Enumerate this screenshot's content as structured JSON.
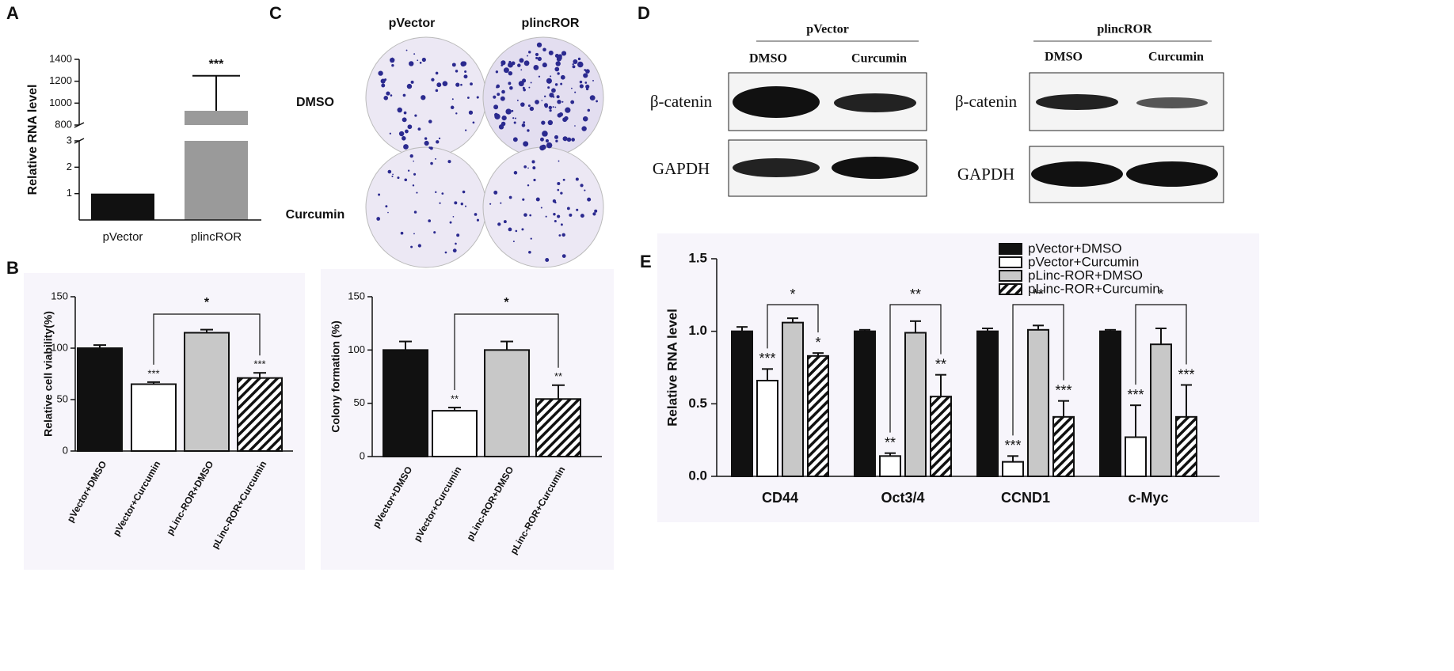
{
  "chart_data": [
    {
      "type": "bar",
      "panel": "A",
      "ylabel": "Relative RNA level",
      "categories": [
        "pVector",
        "plincROR"
      ],
      "values": [
        1,
        930
      ],
      "errors": [
        null,
        320
      ],
      "colors": [
        "#111111",
        "#9a9a9a"
      ],
      "broken_axis": {
        "lower_ylim": [
          0,
          3
        ],
        "lower_yticks": [
          1,
          2,
          3
        ],
        "upper_ylim": [
          800,
          1400
        ],
        "upper_yticks": [
          800,
          1000,
          1200,
          1400
        ]
      },
      "bar_annotations": [
        null,
        "***"
      ]
    },
    {
      "type": "bar",
      "panel": "B",
      "ylabel": "Relative cell viability(%)",
      "categories": [
        "pVector+DMSO",
        "pVector+Curcumin",
        "pLinc-ROR+DMSO",
        "pLinc-ROR+Curcumin"
      ],
      "values": [
        100,
        65,
        115,
        71
      ],
      "errors": [
        3,
        2,
        3,
        5
      ],
      "colors": [
        "#111111",
        "#ffffff",
        "#c8c8c8",
        "#ffffff"
      ],
      "hatched": [
        false,
        false,
        false,
        true
      ],
      "ylim": [
        0,
        150
      ],
      "yticks": [
        0,
        50,
        100,
        150
      ],
      "bar_annotations": [
        null,
        "***",
        null,
        "***"
      ],
      "bracket": {
        "text": "*",
        "between": [
          "pVector+Curcumin",
          "pLinc-ROR+Curcumin"
        ]
      }
    },
    {
      "type": "bar",
      "panel": "C",
      "ylabel": "Colony formation (%)",
      "categories": [
        "pVector+DMSO",
        "pVector+Curcumin",
        "pLinc-ROR+DMSO",
        "pLinc-ROR+Curcumin"
      ],
      "values": [
        100,
        43,
        100,
        54
      ],
      "errors": [
        8,
        3,
        8,
        13
      ],
      "colors": [
        "#111111",
        "#ffffff",
        "#c8c8c8",
        "#ffffff"
      ],
      "hatched": [
        false,
        false,
        false,
        true
      ],
      "ylim": [
        0,
        150
      ],
      "yticks": [
        0,
        50,
        100,
        150
      ],
      "bar_annotations": [
        null,
        "**",
        null,
        "**"
      ],
      "bracket": {
        "text": "*",
        "between": [
          "pVector+Curcumin",
          "pLinc-ROR+Curcumin"
        ]
      }
    },
    {
      "type": "grouped_bar",
      "panel": "E",
      "ylabel": "Relative RNA level",
      "categories": [
        "CD44",
        "Oct3/4",
        "CCND1",
        "c-Myc"
      ],
      "series": [
        {
          "name": "pVector+DMSO",
          "color": "#111111",
          "hatched": false,
          "values": [
            1.0,
            1.0,
            1.0,
            1.0
          ],
          "errors": [
            0.03,
            0.01,
            0.02,
            0.01
          ],
          "annotations": [
            null,
            null,
            null,
            null
          ]
        },
        {
          "name": "pVector+Curcumin",
          "color": "#ffffff",
          "hatched": false,
          "values": [
            0.66,
            0.14,
            0.1,
            0.27
          ],
          "errors": [
            0.08,
            0.02,
            0.04,
            0.22
          ],
          "annotations": [
            "***",
            "**",
            "***",
            "***"
          ]
        },
        {
          "name": "pLinc-ROR+DMSO",
          "color": "#c8c8c8",
          "hatched": false,
          "values": [
            1.06,
            0.99,
            1.01,
            0.91
          ],
          "errors": [
            0.03,
            0.08,
            0.03,
            0.11
          ],
          "annotations": [
            null,
            null,
            null,
            null
          ]
        },
        {
          "name": "pLinc-ROR+Curcumin",
          "color": "#ffffff",
          "hatched": true,
          "values": [
            0.83,
            0.55,
            0.41,
            0.41
          ],
          "errors": [
            0.02,
            0.15,
            0.11,
            0.22
          ],
          "annotations": [
            "*",
            "**",
            "***",
            "***"
          ]
        }
      ],
      "bracket_labels": [
        "*",
        "**",
        "**",
        "*"
      ],
      "ylim": [
        0,
        1.5
      ],
      "yticks": [
        {
          "value": 0,
          "label": "0.0"
        },
        {
          "value": 0.5,
          "label": "0.5"
        },
        {
          "value": 1,
          "label": "1.0"
        },
        {
          "value": 1.5,
          "label": "1.5"
        }
      ],
      "legend": "top-right"
    }
  ],
  "colony_assay": {
    "panel": "C",
    "columns": [
      "pVector",
      "plincROR"
    ],
    "rows": [
      "DMSO",
      "Curcumin"
    ]
  },
  "western_blot": {
    "panel": "D",
    "groups": [
      {
        "title": "pVector",
        "lanes": [
          "DMSO",
          "Curcumin"
        ],
        "proteins": [
          "β-catenin",
          "GAPDH"
        ]
      },
      {
        "title": "plincROR",
        "lanes": [
          "DMSO",
          "Curcumin"
        ],
        "proteins": [
          "β-catenin",
          "GAPDH"
        ]
      }
    ]
  }
}
